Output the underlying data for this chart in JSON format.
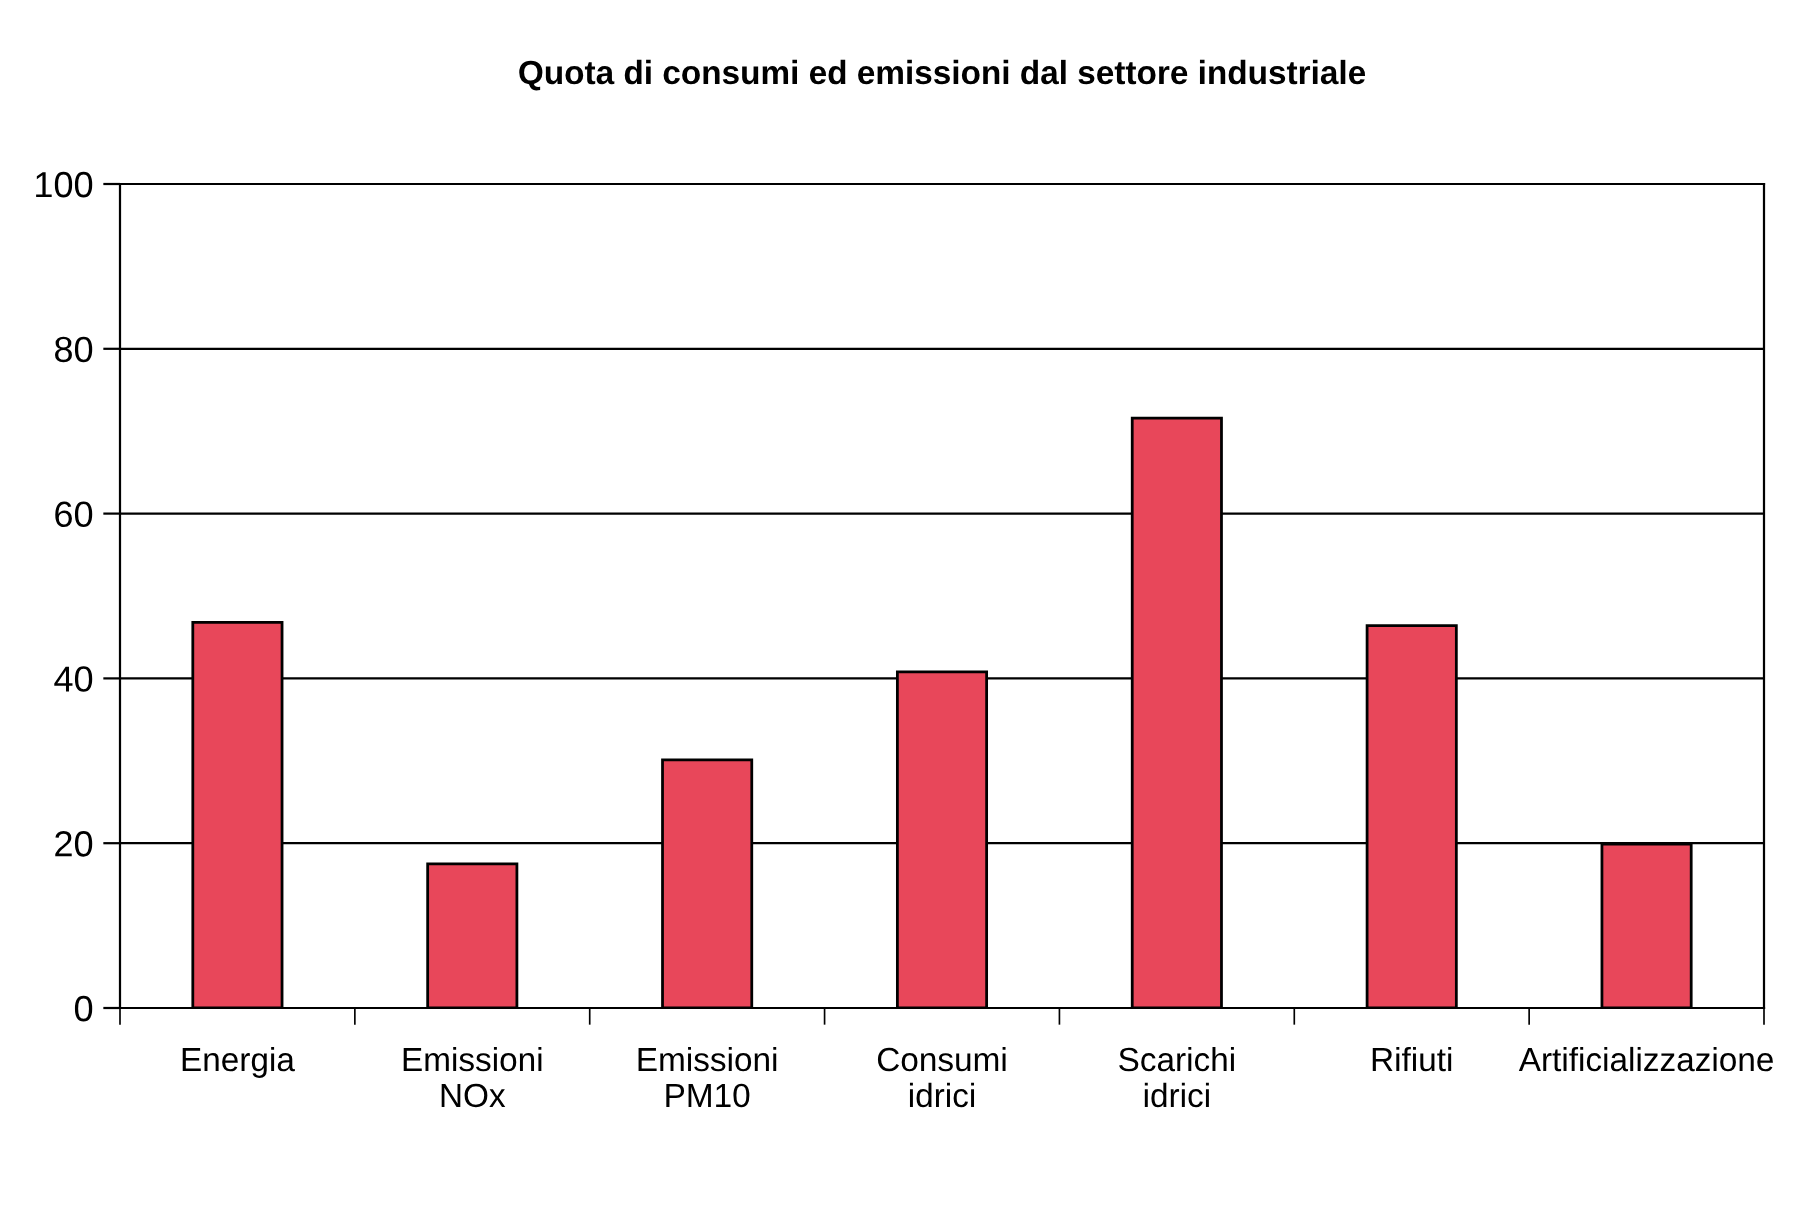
{
  "chart_data": {
    "type": "bar",
    "title": "Quota di consumi ed emissioni dal settore industriale",
    "categories": [
      "Energia",
      "Emissioni\nNOx",
      "Emissioni\nPM10",
      "Consumi\nidrici",
      "Scarichi\nidrici",
      "Rifiuti",
      "Artificializzazione"
    ],
    "values": [
      46.8,
      17.5,
      30.1,
      40.8,
      71.6,
      46.4,
      19.9
    ],
    "color": "#e8475a",
    "ylim": [
      0,
      100
    ],
    "yticks": [
      0,
      20,
      40,
      60,
      80,
      100
    ],
    "grid": "y",
    "legend": false
  }
}
